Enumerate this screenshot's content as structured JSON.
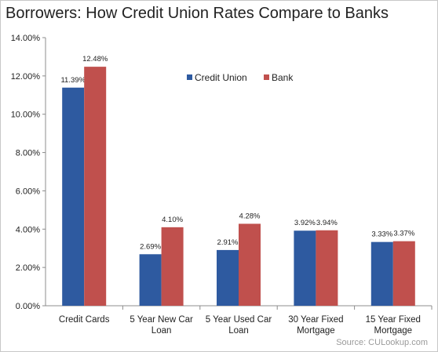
{
  "chart_data": {
    "type": "bar",
    "title": "Borrowers: How Credit Union Rates Compare to Banks",
    "categories": [
      [
        "Credit Cards"
      ],
      [
        "5 Year New Car",
        "Loan"
      ],
      [
        "5 Year Used Car",
        "Loan"
      ],
      [
        "30 Year Fixed",
        "Mortgage"
      ],
      [
        "15 Year Fixed",
        "Mortgage"
      ]
    ],
    "series": [
      {
        "name": "Credit Union",
        "color": "#2e5aa0",
        "values": [
          11.39,
          2.69,
          2.91,
          3.92,
          3.33
        ],
        "labels": [
          "11.39%",
          "2.69%",
          "2.91%",
          "3.92%",
          "3.33%"
        ]
      },
      {
        "name": "Bank",
        "color": "#c0504d",
        "values": [
          12.48,
          4.1,
          4.28,
          3.94,
          3.37
        ],
        "labels": [
          "12.48%",
          "4.10%",
          "4.28%",
          "3.94%",
          "3.37%"
        ]
      }
    ],
    "ylim": [
      0,
      14
    ],
    "yticks": [
      "0.00%",
      "2.00%",
      "4.00%",
      "6.00%",
      "8.00%",
      "10.00%",
      "12.00%",
      "14.00%"
    ],
    "xlabel": "",
    "ylabel": "",
    "grid": false,
    "legend": "top-center"
  },
  "source": "Source: CULookup.com"
}
